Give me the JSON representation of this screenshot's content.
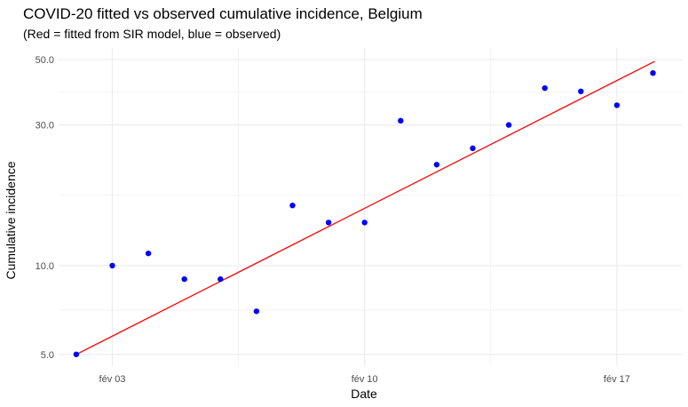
{
  "chart_data": {
    "type": "scatter",
    "title": "COVID-20 fitted vs observed cumulative incidence, Belgium",
    "subtitle": "(Red = fitted from SIR model, blue = observed)",
    "xlabel": "Date",
    "ylabel": "Cumulative incidence",
    "y_scale": "log",
    "grid": true,
    "x_ticks": [
      {
        "label": "fév 03",
        "day": 3
      },
      {
        "label": "fév 10",
        "day": 10
      },
      {
        "label": "fév 17",
        "day": 17
      }
    ],
    "y_ticks": [
      5.0,
      10.0,
      30.0,
      50.0
    ],
    "y_tick_labels": [
      "5.0",
      "10.0",
      "30.0",
      "50.0"
    ],
    "series": [
      {
        "kind": "points",
        "color": "#0000ff",
        "x": [
          2,
          3,
          4,
          5,
          6,
          7,
          8,
          9,
          10,
          11,
          12,
          13,
          14,
          15,
          16,
          17,
          18
        ],
        "y": [
          5,
          10,
          11,
          9,
          9,
          7,
          16,
          14,
          14,
          31,
          22,
          25,
          30,
          40,
          39,
          35,
          45
        ]
      },
      {
        "kind": "line",
        "color": "#ff0000",
        "x": [
          2,
          18.05
        ],
        "y": [
          5,
          49.3
        ]
      }
    ]
  }
}
